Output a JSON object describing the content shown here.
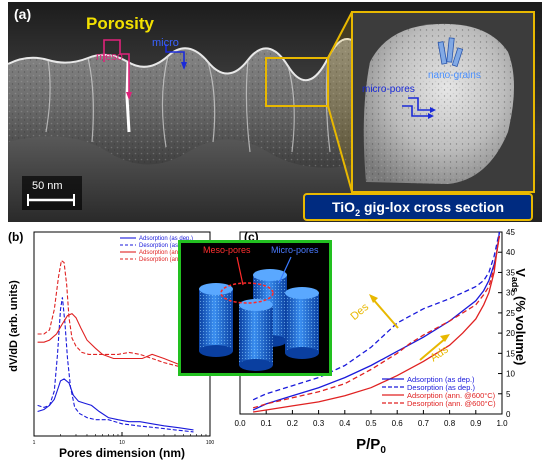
{
  "panel_a": {
    "label": "(a)",
    "porosity": "Porosity",
    "meso": "meso",
    "micro": "micro",
    "micro_pores": "micro-pores",
    "nano_grains": "nano-grains",
    "scale_bar": "50 nm",
    "caption_prefix": "TiO",
    "caption_sub": "2",
    "caption_suffix": " gig-lox cross section"
  },
  "panel_b": {
    "label": "(b)",
    "ylabel": "dV/dD (arb. units)",
    "xlabel": "Pores dimension (nm)"
  },
  "panel_c": {
    "label": "(c)",
    "ylabel_main": "V",
    "ylabel_sub": "ads",
    "ylabel_rest": " (% volume)",
    "xlabel_main": "P/P",
    "xlabel_sub": "0",
    "des_label": "Des",
    "ads_label": "Ads",
    "inset_meso": "Meso-pores",
    "inset_micro": "Micro-pores"
  },
  "colors": {
    "blue": "#1a1adb",
    "red": "#e02222",
    "yellow": "#e8b800",
    "navy": "#002b80",
    "green": "#22c020"
  },
  "chart_data": [
    {
      "type": "line",
      "xscale": "log",
      "xlim": [
        1,
        100
      ],
      "xticks": [
        "1",
        "10",
        "100"
      ],
      "xlabel": "Pores dimension (nm)",
      "ylabel": "dV/dD (arb. units)",
      "legend_position": "top-right",
      "series": [
        {
          "name": "Adsorption (as dep.)",
          "color": "#1a1adb",
          "dash": "solid",
          "x": [
            1.1,
            1.3,
            1.5,
            1.7,
            1.9,
            2.0,
            2.2,
            2.5,
            2.8,
            3.2,
            3.8,
            4.5,
            5.5,
            7,
            9,
            12,
            16,
            22,
            30,
            45,
            65
          ],
          "y": [
            0.12,
            0.13,
            0.15,
            0.18,
            0.24,
            0.27,
            0.28,
            0.26,
            0.2,
            0.17,
            0.16,
            0.15,
            0.12,
            0.09,
            0.08,
            0.07,
            0.07,
            0.06,
            0.05,
            0.04,
            0.03
          ]
        },
        {
          "name": "Desorption (as dep.)",
          "color": "#1a1adb",
          "dash": "dashed",
          "x": [
            1.1,
            1.3,
            1.5,
            1.7,
            1.85,
            2.0,
            2.1,
            2.25,
            2.4,
            2.6,
            2.9,
            3.3,
            4,
            5,
            7,
            10,
            15,
            25,
            40,
            65
          ],
          "y": [
            0.15,
            0.14,
            0.15,
            0.22,
            0.4,
            0.62,
            0.68,
            0.55,
            0.38,
            0.24,
            0.14,
            0.11,
            0.09,
            0.08,
            0.08,
            0.06,
            0.05,
            0.04,
            0.03,
            0.02
          ]
        },
        {
          "name": "Adsorption (ann. @600°C)",
          "color": "#e02222",
          "dash": "solid",
          "x": [
            1.1,
            1.3,
            1.5,
            1.8,
            2.1,
            2.4,
            2.7,
            3.0,
            3.4,
            4,
            5,
            6,
            8,
            10,
            13,
            17,
            22,
            30,
            45,
            65
          ],
          "y": [
            0.46,
            0.46,
            0.47,
            0.5,
            0.55,
            0.59,
            0.6,
            0.58,
            0.53,
            0.47,
            0.43,
            0.4,
            0.38,
            0.38,
            0.38,
            0.38,
            0.4,
            0.38,
            0.35,
            0.34
          ]
        },
        {
          "name": "Desorption (ann. @600°C)",
          "color": "#e02222",
          "dash": "dashed",
          "x": [
            1.1,
            1.3,
            1.5,
            1.7,
            1.9,
            2.05,
            2.2,
            2.35,
            2.5,
            2.7,
            3.0,
            3.5,
            4.2,
            5,
            6.5,
            9,
            12,
            16,
            22,
            30,
            45
          ],
          "y": [
            0.5,
            0.5,
            0.52,
            0.62,
            0.78,
            0.86,
            0.85,
            0.74,
            0.58,
            0.48,
            0.44,
            0.41,
            0.4,
            0.4,
            0.4,
            0.4,
            0.41,
            0.4,
            0.38,
            0.36,
            0.34
          ]
        }
      ]
    },
    {
      "type": "line",
      "xlim": [
        0.0,
        1.0
      ],
      "ylim": [
        0,
        45
      ],
      "xticks": [
        "0.0",
        "0.1",
        "0.2",
        "0.3",
        "0.4",
        "0.5",
        "0.6",
        "0.7",
        "0.8",
        "0.9",
        "1.0"
      ],
      "yticks": [
        "0",
        "5",
        "10",
        "15",
        "20",
        "25",
        "30",
        "35",
        "40",
        "45"
      ],
      "xlabel": "P/P0",
      "ylabel": "Vads (% volume)",
      "legend_position": "bottom-right",
      "series": [
        {
          "name": "Adsorption (as dep.)",
          "color": "#1a1adb",
          "dash": "solid",
          "x": [
            0.05,
            0.1,
            0.2,
            0.3,
            0.4,
            0.5,
            0.6,
            0.7,
            0.8,
            0.85,
            0.9,
            0.93,
            0.95,
            0.97,
            0.98,
            0.99
          ],
          "y": [
            1.0,
            2.5,
            4.5,
            6.5,
            9,
            12,
            15.5,
            19,
            23,
            25.5,
            28,
            30.5,
            33,
            37,
            40,
            45
          ]
        },
        {
          "name": "Desorption (as dep.)",
          "color": "#1a1adb",
          "dash": "dashed",
          "x": [
            0.05,
            0.1,
            0.2,
            0.3,
            0.4,
            0.5,
            0.55,
            0.6,
            0.7,
            0.8,
            0.85,
            0.9,
            0.93,
            0.95,
            0.97,
            0.99
          ],
          "y": [
            3.5,
            5,
            7,
            9,
            12,
            16.5,
            19.5,
            22.5,
            26,
            28.5,
            30,
            31.5,
            33,
            35,
            39,
            45
          ]
        },
        {
          "name": "Adsorption (ann. @600°C)",
          "color": "#e02222",
          "dash": "solid",
          "x": [
            0.05,
            0.1,
            0.2,
            0.3,
            0.4,
            0.5,
            0.6,
            0.7,
            0.8,
            0.85,
            0.9,
            0.93,
            0.95,
            0.97,
            0.98,
            0.99
          ],
          "y": [
            0.5,
            1.0,
            2.0,
            3.0,
            4.5,
            6.5,
            9.5,
            13,
            17,
            20,
            23.5,
            27,
            30,
            35,
            40,
            44
          ]
        },
        {
          "name": "Desorption (ann. @600°C)",
          "color": "#e02222",
          "dash": "dashed",
          "x": [
            0.05,
            0.1,
            0.2,
            0.3,
            0.4,
            0.5,
            0.6,
            0.65,
            0.7,
            0.8,
            0.85,
            0.9,
            0.93,
            0.95,
            0.97,
            0.99
          ],
          "y": [
            1.5,
            2.5,
            4,
            5.5,
            7.5,
            11,
            15,
            17.5,
            19.5,
            23,
            25,
            27,
            29.5,
            31.5,
            36,
            44
          ]
        }
      ]
    }
  ]
}
